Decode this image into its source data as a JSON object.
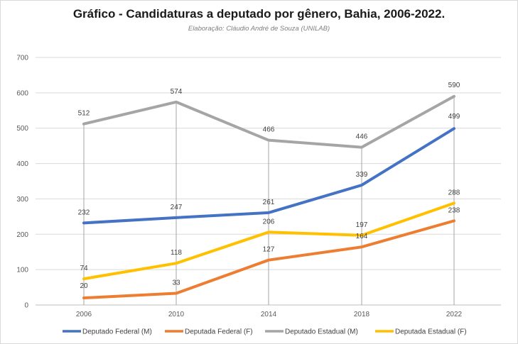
{
  "title": "Gráfico - Candidaturas a deputado por gênero, Bahia, 2006-2022.",
  "subtitle": "Elaboração: Cláudio André de Souza (UNILAB)",
  "chart_data": {
    "type": "line",
    "title": "Gráfico - Candidaturas a deputado por gênero, Bahia, 2006-2022.",
    "subtitle": "Elaboração: Cláudio André de Souza (UNILAB)",
    "categories": [
      "2006",
      "2010",
      "2014",
      "2018",
      "2022"
    ],
    "ylim": [
      0,
      700
    ],
    "yticks": [
      0,
      100,
      200,
      300,
      400,
      500,
      600,
      700
    ],
    "grid": "horizontal",
    "legend_position": "bottom",
    "data_labels": true,
    "series": [
      {
        "name": "Deputado Federal (M)",
        "color": "#4472C4",
        "values": [
          232,
          247,
          261,
          339,
          499
        ]
      },
      {
        "name": "Deputada Federal (F)",
        "color": "#ED7D31",
        "values": [
          20,
          33,
          127,
          164,
          238
        ]
      },
      {
        "name": "Deputado Estadual (M)",
        "color": "#A5A5A5",
        "values": [
          512,
          574,
          466,
          446,
          590
        ]
      },
      {
        "name": "Deputada Estadual (F)",
        "color": "#FFC000",
        "values": [
          74,
          118,
          206,
          197,
          288
        ]
      }
    ]
  }
}
